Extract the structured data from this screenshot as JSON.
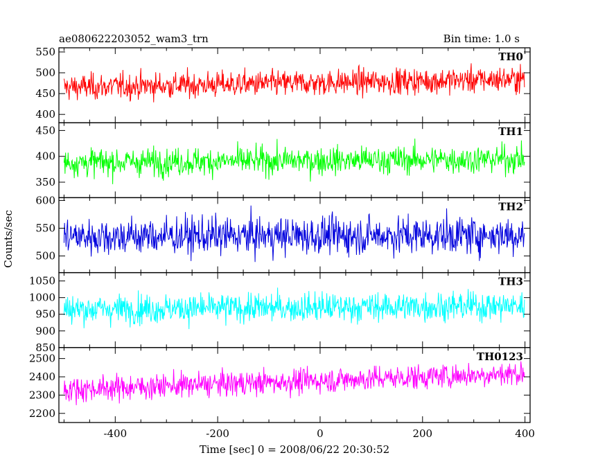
{
  "chart_data": {
    "type": "line",
    "title_left": "ae080622203052_wam3_trn",
    "title_right": "Bin time: 1.0 s",
    "xlabel": "Time [sec] 0 = 2008/06/22 20:30:52",
    "ylabel": "Counts/sec",
    "xlim": [
      -510,
      410
    ],
    "x_range": [
      -500,
      399
    ],
    "xticks": [
      -400,
      -200,
      0,
      200,
      400
    ],
    "panels": [
      {
        "name": "TH0",
        "color": "#ff0000",
        "ylim": [
          380,
          560
        ],
        "yticks": [
          400,
          450,
          500,
          550
        ],
        "mean_start": 465,
        "mean_end": 485,
        "spread": 22
      },
      {
        "name": "TH1",
        "color": "#00ff00",
        "ylim": [
          320,
          465
        ],
        "yticks": [
          350,
          400,
          450
        ],
        "mean_start": 388,
        "mean_end": 395,
        "spread": 19
      },
      {
        "name": "TH2",
        "color": "#0000dd",
        "ylim": [
          470,
          605
        ],
        "yticks": [
          500,
          550,
          600
        ],
        "mean_start": 535,
        "mean_end": 538,
        "spread": 24
      },
      {
        "name": "TH3",
        "color": "#00ffff",
        "ylim": [
          850,
          1075
        ],
        "yticks": [
          850,
          900,
          950,
          1000,
          1050
        ],
        "mean_start": 965,
        "mean_end": 975,
        "spread": 31
      },
      {
        "name": "TH0123",
        "color": "#ff00ff",
        "ylim": [
          2150,
          2560
        ],
        "yticks": [
          2200,
          2300,
          2400,
          2500
        ],
        "mean_start": 2330,
        "mean_end": 2420,
        "spread": 48
      }
    ]
  }
}
